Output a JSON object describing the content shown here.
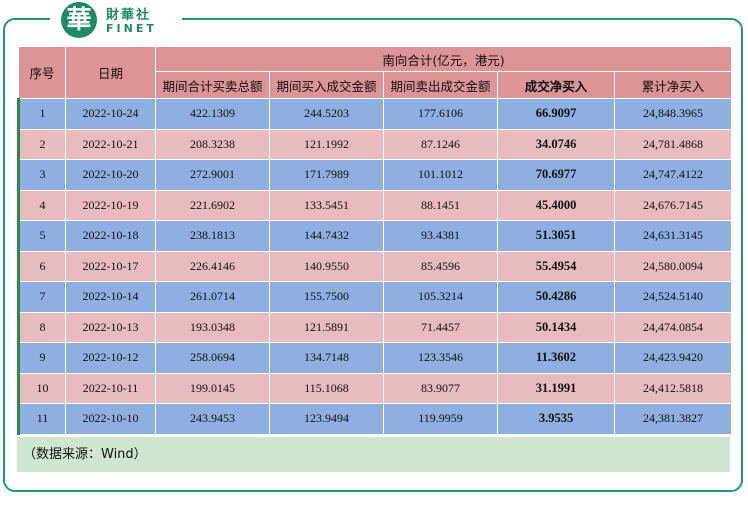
{
  "brand": {
    "logo_char": "華",
    "name_cn": "財華社",
    "name_en": "FINET"
  },
  "table": {
    "group_header": "南向合计(亿元，港元)",
    "col_headers": [
      "序号",
      "日期",
      "期间合计买卖总额",
      "期间买入成交金额",
      "期间卖出成交金额",
      "成交净买入",
      "累计净买入"
    ],
    "rows": [
      [
        "1",
        "2022-10-24",
        "422.1309",
        "244.5203",
        "177.6106",
        "66.9097",
        "24,848.3965"
      ],
      [
        "2",
        "2022-10-21",
        "208.3238",
        "121.1992",
        "87.1246",
        "34.0746",
        "24,781.4868"
      ],
      [
        "3",
        "2022-10-20",
        "272.9001",
        "171.7989",
        "101.1012",
        "70.6977",
        "24,747.4122"
      ],
      [
        "4",
        "2022-10-19",
        "221.6902",
        "133.5451",
        "88.1451",
        "45.4000",
        "24,676.7145"
      ],
      [
        "5",
        "2022-10-18",
        "238.1813",
        "144.7432",
        "93.4381",
        "51.3051",
        "24,631.3145"
      ],
      [
        "6",
        "2022-10-17",
        "226.4146",
        "140.9550",
        "85.4596",
        "55.4954",
        "24,580.0094"
      ],
      [
        "7",
        "2022-10-14",
        "261.0714",
        "155.7500",
        "105.3214",
        "50.4286",
        "24,524.5140"
      ],
      [
        "8",
        "2022-10-13",
        "193.0348",
        "121.5891",
        "71.4457",
        "50.1434",
        "24,474.0854"
      ],
      [
        "9",
        "2022-10-12",
        "258.0694",
        "134.7148",
        "123.3546",
        "11.3602",
        "24,423.9420"
      ],
      [
        "10",
        "2022-10-11",
        "199.0145",
        "115.1068",
        "83.9077",
        "31.1991",
        "24,412.5818"
      ],
      [
        "11",
        "2022-10-10",
        "243.9453",
        "123.9494",
        "119.9959",
        "3.9535",
        "24,381.3827"
      ]
    ]
  },
  "note": "（数据来源：Wind）",
  "colors": {
    "header": "#dd9496",
    "row_blue": "#8eafe0",
    "row_pink": "#e8bcbe",
    "note_bg": "#cfe7d2",
    "brand_green": "#1d8a63"
  }
}
